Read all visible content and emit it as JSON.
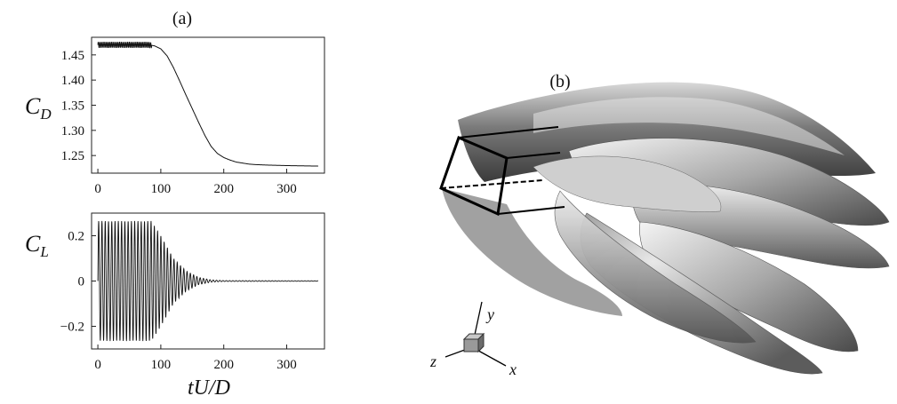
{
  "panels": {
    "a_label": "(a)",
    "b_label": "(b)"
  },
  "axes_labels": {
    "cd": "C",
    "cd_sub": "D",
    "cl": "C",
    "cl_sub": "L",
    "time": "tU/D"
  },
  "triad": {
    "x": "x",
    "y": "y",
    "z": "z"
  },
  "chart_data": [
    {
      "type": "line",
      "ylabel": "C_D",
      "xlim": [
        -10,
        360
      ],
      "ylim": [
        1.215,
        1.485
      ],
      "xticks": [
        0,
        100,
        200,
        300
      ],
      "yticks": [
        1.25,
        1.3,
        1.35,
        1.4,
        1.45
      ],
      "ytick_labels": [
        "1.25",
        "1.30",
        "1.35",
        "1.40",
        "1.45"
      ],
      "x": [
        0,
        80,
        90,
        95,
        100,
        110,
        120,
        130,
        140,
        150,
        160,
        170,
        180,
        190,
        200,
        210,
        220,
        230,
        240,
        250,
        270,
        300,
        350
      ],
      "y": [
        1.47,
        1.47,
        1.468,
        1.465,
        1.462,
        1.448,
        1.425,
        1.398,
        1.37,
        1.343,
        1.316,
        1.29,
        1.268,
        1.254,
        1.246,
        1.241,
        1.237,
        1.235,
        1.233,
        1.232,
        1.231,
        1.23,
        1.229
      ],
      "oscillation_amplitude": 0.006,
      "oscillation_until": 85
    },
    {
      "type": "line",
      "ylabel": "C_L",
      "xlabel": "tU/D",
      "xlim": [
        -10,
        360
      ],
      "ylim": [
        -0.3,
        0.3
      ],
      "xticks": [
        0,
        100,
        200,
        300
      ],
      "yticks": [
        -0.2,
        0,
        0.2
      ],
      "ytick_labels": [
        "−0.2",
        "0",
        "0.2"
      ],
      "envelope_x": [
        0,
        85,
        100,
        120,
        140,
        160,
        180,
        200,
        350
      ],
      "envelope_amp": [
        0.265,
        0.265,
        0.2,
        0.1,
        0.045,
        0.016,
        0.005,
        0.002,
        0.001
      ],
      "period": 5.2
    }
  ]
}
